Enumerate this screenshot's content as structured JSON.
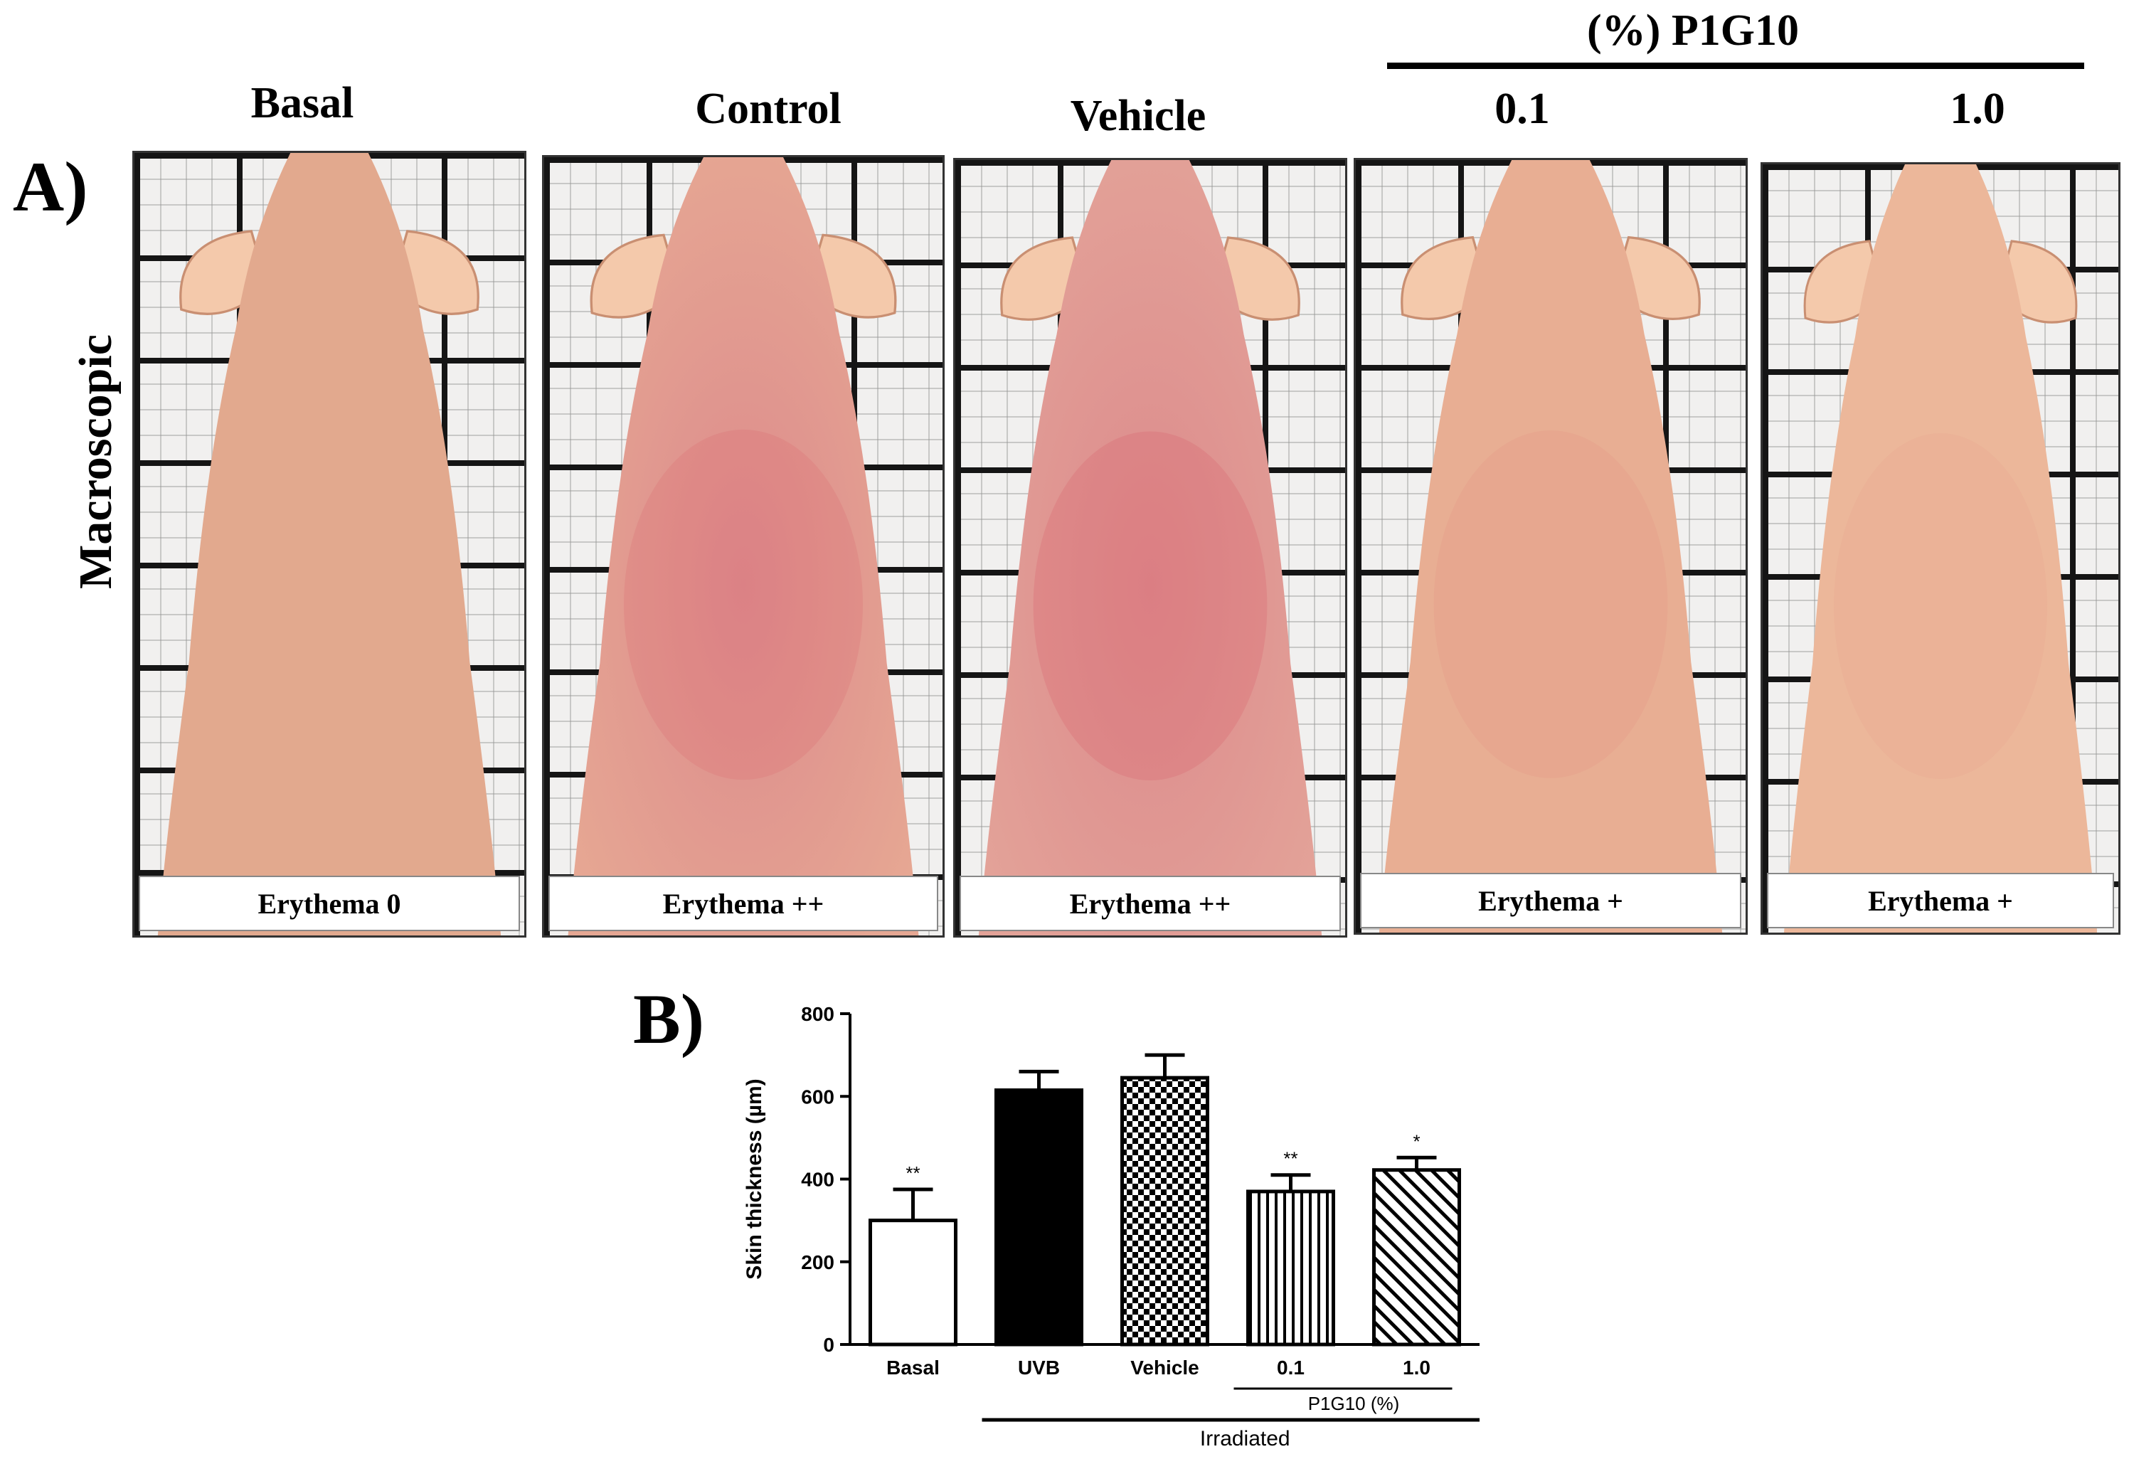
{
  "panel_a": {
    "letter": "A)",
    "row_label": "Macroscopic",
    "group_label": "(%) P1G10",
    "columns": [
      {
        "header": "Basal",
        "caption": "Erythema 0",
        "skin": "#e2a98e",
        "redness": 0.0
      },
      {
        "header": "Control",
        "caption": "Erythema ++",
        "skin": "#e6a793",
        "redness": 0.55
      },
      {
        "header": "Vehicle",
        "caption": "Erythema ++",
        "skin": "#e3a298",
        "redness": 0.75
      },
      {
        "header": "0.1",
        "caption": "Erythema +",
        "skin": "#e8ae93",
        "redness": 0.25
      },
      {
        "header": "1.0",
        "caption": "Erythema +",
        "skin": "#ecb79a",
        "redness": 0.15
      }
    ]
  },
  "panel_b": {
    "letter": "B)",
    "group_irradiated": "Irradiated",
    "group_p1g10": "P1G10 (%)"
  },
  "chart_data": {
    "type": "bar",
    "ylabel": "Skin thickness (µm)",
    "ylim": [
      0,
      800
    ],
    "yticks": [
      0,
      200,
      400,
      600,
      800
    ],
    "categories": [
      "Basal",
      "UVB",
      "Vehicle",
      "0.1",
      "1.0"
    ],
    "values": [
      300,
      615,
      645,
      370,
      422
    ],
    "errors": [
      75,
      45,
      55,
      40,
      30
    ],
    "significance": [
      "**",
      "",
      "",
      "**",
      "*"
    ],
    "patterns": [
      "open",
      "solid",
      "checker",
      "vertical",
      "diagonal"
    ]
  }
}
